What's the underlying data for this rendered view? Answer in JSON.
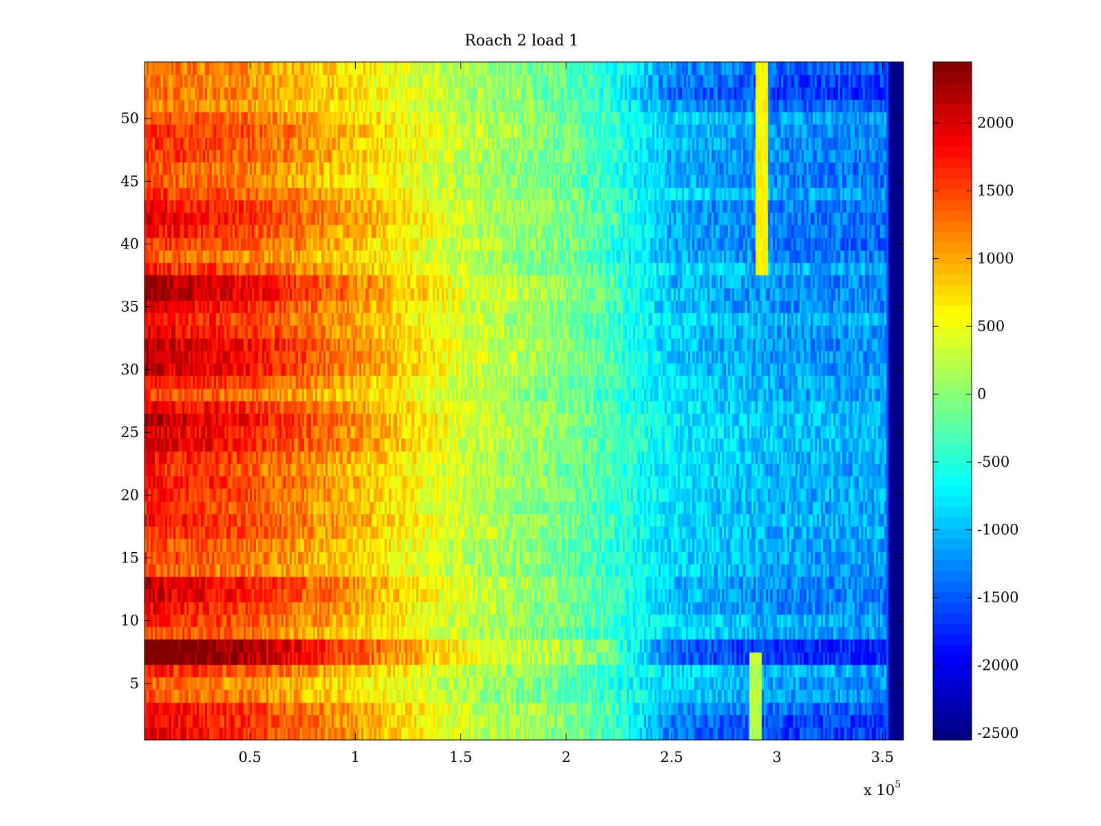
{
  "chart_data": {
    "type": "heatmap",
    "title": "Roach 2 load 1",
    "xlabel": "",
    "ylabel": "",
    "x_range": [
      0,
      360000
    ],
    "y_range": [
      0.5,
      54.5
    ],
    "x_ticks": [
      {
        "value": 50000,
        "label": "0.5"
      },
      {
        "value": 100000,
        "label": "1"
      },
      {
        "value": 150000,
        "label": "1.5"
      },
      {
        "value": 200000,
        "label": "2"
      },
      {
        "value": 250000,
        "label": "2.5"
      },
      {
        "value": 300000,
        "label": "3"
      },
      {
        "value": 350000,
        "label": "3.5"
      }
    ],
    "x_multiplier": {
      "base": "x 10",
      "exponent": "5"
    },
    "y_ticks": [
      {
        "value": 5,
        "label": "5"
      },
      {
        "value": 10,
        "label": "10"
      },
      {
        "value": 15,
        "label": "15"
      },
      {
        "value": 20,
        "label": "20"
      },
      {
        "value": 25,
        "label": "25"
      },
      {
        "value": 30,
        "label": "30"
      },
      {
        "value": 35,
        "label": "35"
      },
      {
        "value": 40,
        "label": "40"
      },
      {
        "value": 45,
        "label": "45"
      },
      {
        "value": 50,
        "label": "50"
      }
    ],
    "colorbar": {
      "colormap": "jet",
      "range": [
        -2550,
        2450
      ],
      "ticks": [
        {
          "value": 2000,
          "label": "2000"
        },
        {
          "value": 1500,
          "label": "1500"
        },
        {
          "value": 1000,
          "label": "1000"
        },
        {
          "value": 500,
          "label": "500"
        },
        {
          "value": 0,
          "label": "0"
        },
        {
          "value": -500,
          "label": "-500"
        },
        {
          "value": -1000,
          "label": "-1000"
        },
        {
          "value": -1500,
          "label": "-1500"
        },
        {
          "value": -2000,
          "label": "-2000"
        },
        {
          "value": -2500,
          "label": "-2500"
        }
      ]
    },
    "rows": 54,
    "x_profile": [
      {
        "x": 0,
        "value": 1500
      },
      {
        "x": 50000,
        "value": 1250
      },
      {
        "x": 100000,
        "value": 800
      },
      {
        "x": 150000,
        "value": 250
      },
      {
        "x": 200000,
        "value": -150
      },
      {
        "x": 250000,
        "value": -850
      },
      {
        "x": 300000,
        "value": -1100
      },
      {
        "x": 352000,
        "value": -1150
      },
      {
        "x": 354000,
        "value": -2500
      },
      {
        "x": 360000,
        "value": -2500
      }
    ],
    "row_offsets": [
      350,
      350,
      350,
      -100,
      -150,
      150,
      950,
      950,
      0,
      150,
      250,
      450,
      500,
      -50,
      0,
      0,
      150,
      250,
      100,
      200,
      250,
      100,
      250,
      450,
      450,
      550,
      350,
      0,
      250,
      500,
      550,
      550,
      350,
      250,
      400,
      650,
      600,
      150,
      -100,
      100,
      250,
      400,
      300,
      100,
      -100,
      -50,
      100,
      100,
      200,
      0,
      -250,
      -150,
      -200,
      -150
    ],
    "row_blue_extra": [
      -600,
      -600,
      -400,
      0,
      0,
      0,
      -900,
      -900,
      0,
      0,
      -200,
      -300,
      -300,
      0,
      0,
      0,
      0,
      0,
      0,
      0,
      0,
      0,
      0,
      0,
      0,
      0,
      0,
      0,
      0,
      -200,
      -250,
      -250,
      -150,
      0,
      -250,
      -300,
      -300,
      0,
      -150,
      -300,
      -300,
      -350,
      -300,
      0,
      -150,
      -200,
      -200,
      -150,
      -150,
      0,
      -250,
      -500,
      -400,
      -300
    ],
    "features": [
      {
        "x": 290000,
        "rows": [
          1,
          7
        ],
        "value": 200
      },
      {
        "x": 293000,
        "rows": [
          38,
          54
        ],
        "value": 600
      }
    ]
  }
}
